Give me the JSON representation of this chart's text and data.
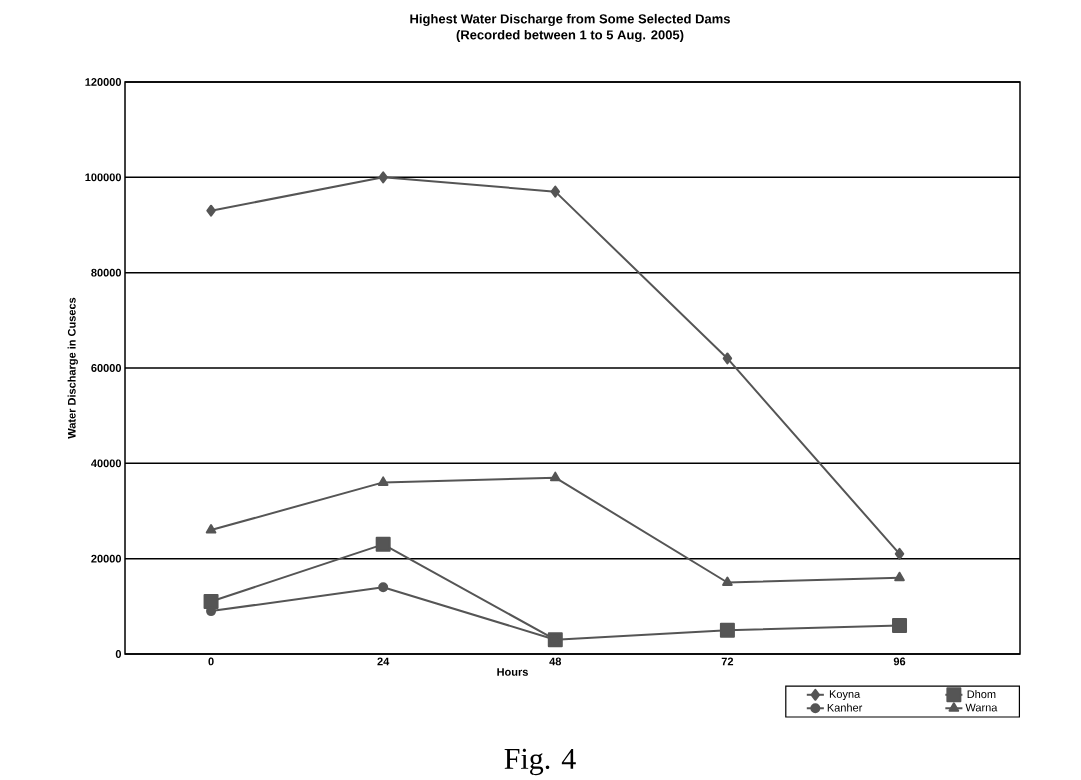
{
  "chart_data": {
    "type": "line",
    "title": "Highest Water Discharge from Some Selected Dams",
    "subtitle": "(Recorded between 1 to 5 Aug. 2005)",
    "xlabel": "Hours",
    "ylabel": "Water Discharge in Cusecs",
    "categories": [
      "0",
      "24",
      "48",
      "72",
      "96"
    ],
    "series": [
      {
        "name": "Koyna",
        "color": "#555555",
        "marker": "diamond",
        "values": [
          93000,
          100000,
          97000,
          62000,
          21000
        ]
      },
      {
        "name": "Dhom",
        "color": "#555555",
        "marker": "square",
        "values": [
          11000,
          23000,
          3000,
          5000,
          6000
        ]
      },
      {
        "name": "Kanher",
        "color": "#555555",
        "marker": "circle",
        "values": [
          9000,
          14000,
          3000,
          null,
          null
        ]
      },
      {
        "name": "Warna",
        "color": "#555555",
        "marker": "triangle",
        "values": [
          26000,
          36000,
          37000,
          15000,
          16000
        ]
      }
    ],
    "ylim": [
      0,
      120000
    ],
    "yticks": [
      0,
      20000,
      40000,
      60000,
      80000,
      100000,
      120000
    ],
    "grid": "y",
    "legend": "bottom right",
    "line_style": "solid",
    "annotations": [
      "Fig. 4"
    ]
  }
}
